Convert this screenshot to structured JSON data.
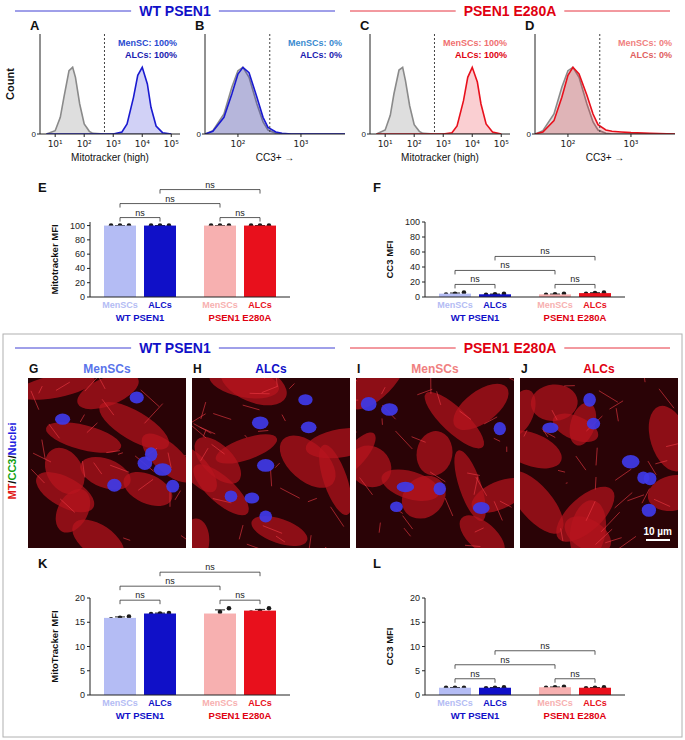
{
  "headers": {
    "top": [
      {
        "text": "WT PSEN1",
        "color": "#1010c8"
      },
      {
        "text": "PSEN1 E280A",
        "color": "#e00010"
      }
    ],
    "bottom": [
      {
        "text": "WT PSEN1",
        "color": "#1010c8"
      },
      {
        "text": "PSEN1 E280A",
        "color": "#e00010"
      }
    ]
  },
  "images": {
    "stain_label": {
      "parts": [
        "MT",
        "/",
        "CC3",
        "/",
        "Nuclei"
      ],
      "colors": [
        "#e01818",
        "#111111",
        "#10a010",
        "#111111",
        "#2020e0"
      ]
    },
    "panels": [
      {
        "panel": "G",
        "title": "MenSCs",
        "color": "#5a74ea"
      },
      {
        "panel": "H",
        "title": "ALCs",
        "color": "#1010c8"
      },
      {
        "panel": "I",
        "title": "MenSCs",
        "color": "#f08080"
      },
      {
        "panel": "J",
        "title": "ALCs",
        "color": "#e00010"
      }
    ],
    "scale_bar": "10 µm"
  },
  "chart_data": [
    {
      "type": "area",
      "panel": "A",
      "log": "x",
      "x": [
        5,
        10,
        15,
        20,
        30,
        40,
        50,
        70,
        100,
        150,
        200,
        500,
        1000,
        2000,
        3000,
        5000,
        7000,
        10000,
        15000,
        20000,
        30000,
        50000,
        100000
      ],
      "series": [
        {
          "color": "#8a8a8a",
          "values": [
            0,
            5,
            25,
            55,
            95,
            100,
            85,
            45,
            15,
            4,
            1,
            0,
            0,
            0,
            0,
            0,
            0,
            0,
            0,
            0,
            0,
            0,
            0
          ]
        },
        {
          "color": "#1a1ad0",
          "values": [
            0,
            0,
            0,
            0,
            0,
            0,
            0,
            0,
            0,
            0,
            0,
            0,
            0,
            3,
            15,
            55,
            88,
            100,
            75,
            40,
            12,
            2,
            0
          ]
        }
      ],
      "xlim": [
        3,
        200000
      ],
      "ylim": [
        0,
        150
      ],
      "xticks": [
        {
          "value": 10,
          "label": "10¹"
        },
        {
          "value": 100,
          "label": "10²"
        },
        {
          "value": 1000,
          "label": "10³"
        },
        {
          "value": 10000,
          "label": "10⁴"
        },
        {
          "value": 100000,
          "label": "10⁵"
        }
      ],
      "yticks": [
        0
      ],
      "x_label": "Mitotracker (high)",
      "y_label": "Count",
      "gate": 500,
      "annotations": [
        {
          "text": "MenSC: 100%",
          "color": "#2a4ad0"
        },
        {
          "text": "ALCs: 100%",
          "color": "#1a1ab0"
        }
      ]
    },
    {
      "type": "area",
      "panel": "B",
      "log": "x",
      "x": [
        30,
        40,
        60,
        80,
        100,
        120,
        150,
        200,
        250,
        300,
        400,
        500,
        700,
        1000,
        2000,
        5000
      ],
      "series": [
        {
          "color": "#8a8a8a",
          "values": [
            0,
            5,
            30,
            70,
            95,
            100,
            85,
            45,
            18,
            6,
            1,
            0,
            0,
            0,
            0,
            0
          ]
        },
        {
          "color": "#1a1ad0",
          "values": [
            0,
            4,
            25,
            60,
            90,
            100,
            92,
            55,
            25,
            10,
            3,
            1,
            0,
            0,
            0,
            0
          ]
        }
      ],
      "xlim": [
        30,
        5000
      ],
      "ylim": [
        0,
        150
      ],
      "xticks": [
        {
          "value": 100,
          "label": "10²"
        },
        {
          "value": 1000,
          "label": "10³"
        }
      ],
      "yticks": [
        0
      ],
      "x_label": "CC3+ →",
      "gate": 320,
      "annotations": [
        {
          "text": "MenSCs: 0%",
          "color": "#3a8ad0"
        },
        {
          "text": "ALCs: 0%",
          "color": "#1a1ab0"
        }
      ]
    },
    {
      "type": "area",
      "panel": "C",
      "log": "x",
      "x": [
        5,
        10,
        15,
        20,
        30,
        40,
        50,
        70,
        100,
        150,
        200,
        500,
        1000,
        2000,
        3000,
        5000,
        7000,
        10000,
        15000,
        20000,
        30000,
        50000,
        100000
      ],
      "series": [
        {
          "color": "#8a8a8a",
          "values": [
            0,
            6,
            28,
            60,
            96,
            100,
            80,
            42,
            14,
            4,
            1,
            0,
            0,
            0,
            0,
            0,
            0,
            0,
            0,
            0,
            0,
            0,
            0
          ]
        },
        {
          "color": "#e8101c",
          "values": [
            0,
            0,
            0,
            0,
            0,
            0,
            0,
            0,
            0,
            0,
            0,
            0,
            0,
            2,
            12,
            50,
            85,
            100,
            78,
            45,
            15,
            3,
            0
          ]
        }
      ],
      "xlim": [
        3,
        200000
      ],
      "ylim": [
        0,
        150
      ],
      "xticks": [
        {
          "value": 10,
          "label": "10¹"
        },
        {
          "value": 100,
          "label": "10²"
        },
        {
          "value": 1000,
          "label": "10³"
        },
        {
          "value": 10000,
          "label": "10⁴"
        },
        {
          "value": 100000,
          "label": "10⁵"
        }
      ],
      "yticks": [
        0
      ],
      "x_label": "Mitotracker (high)",
      "gate": 500,
      "annotations": [
        {
          "text": "MenSCs: 100%",
          "color": "#f07070"
        },
        {
          "text": "ALCs: 100%",
          "color": "#e00010"
        }
      ]
    },
    {
      "type": "area",
      "panel": "D",
      "log": "x",
      "x": [
        30,
        40,
        60,
        80,
        100,
        120,
        150,
        200,
        250,
        300,
        400,
        500,
        700,
        1000,
        2000,
        5000
      ],
      "series": [
        {
          "color": "#8a8a8a",
          "values": [
            0,
            5,
            30,
            70,
            95,
            100,
            85,
            45,
            18,
            6,
            1,
            0,
            0,
            0,
            0,
            0
          ]
        },
        {
          "color": "#e8101c",
          "values": [
            0,
            3,
            20,
            55,
            88,
            100,
            90,
            58,
            30,
            14,
            6,
            4,
            3,
            2,
            1,
            0
          ]
        }
      ],
      "xlim": [
        30,
        5000
      ],
      "ylim": [
        0,
        150
      ],
      "xticks": [
        {
          "value": 100,
          "label": "10²"
        },
        {
          "value": 1000,
          "label": "10³"
        }
      ],
      "yticks": [
        0
      ],
      "x_label": "CC3+ →",
      "gate": 320,
      "annotations": [
        {
          "text": "MenSCs: 0%",
          "color": "#f08080"
        },
        {
          "text": "ALCs: 0%",
          "color": "#e06060"
        }
      ]
    },
    {
      "type": "bar",
      "panel": "E",
      "categories": [
        "MenSCs",
        "ALCs",
        "MenSCs",
        "ALCs"
      ],
      "values": [
        100,
        100,
        100,
        100
      ],
      "errors": [
        0,
        0,
        0,
        0
      ],
      "points": [
        [
          100,
          100,
          100
        ],
        [
          100,
          100,
          100
        ],
        [
          100,
          100,
          100
        ],
        [
          100,
          100,
          100
        ]
      ],
      "colors": [
        "#b4bcf4",
        "#1010c8",
        "#f7b0b0",
        "#e8101c"
      ],
      "groups": [
        {
          "label": "WT PSEN1",
          "members": [
            0,
            1
          ],
          "color": "#1010c8"
        },
        {
          "label": "PSEN1 E280A",
          "members": [
            2,
            3
          ],
          "color": "#e00010"
        }
      ],
      "comparisons": [
        {
          "pair": [
            0,
            1
          ],
          "label": "ns"
        },
        {
          "pair": [
            2,
            3
          ],
          "label": "ns"
        },
        {
          "pair": [
            0,
            2
          ],
          "label": "ns"
        },
        {
          "pair": [
            1,
            3
          ],
          "label": "ns"
        }
      ],
      "ylim": [
        0,
        105
      ],
      "yticks": [
        0,
        20,
        40,
        60,
        80,
        100
      ],
      "y_label": "Mitotracker MFI"
    },
    {
      "type": "bar",
      "panel": "F",
      "categories": [
        "MenSCs",
        "ALCs",
        "MenSCs",
        "ALCs"
      ],
      "values": [
        4.5,
        3.6,
        3.5,
        5.2
      ],
      "errors": [
        0.8,
        0.35,
        0.4,
        0.5
      ],
      "points": [
        [
          3.2,
          4.4,
          5.9
        ],
        [
          3,
          3.6,
          4.2
        ],
        [
          2.8,
          3.5,
          4.2
        ],
        [
          4.3,
          5.2,
          6.1
        ]
      ],
      "colors": [
        "#b4bcf4",
        "#1010c8",
        "#f7b0b0",
        "#e8101c"
      ],
      "groups": [
        {
          "label": "WT PSEN1",
          "members": [
            0,
            1
          ],
          "color": "#1010c8"
        },
        {
          "label": "PSEN1 E280A",
          "members": [
            2,
            3
          ],
          "color": "#e00010"
        }
      ],
      "comparisons": [
        {
          "pair": [
            0,
            1
          ],
          "label": "ns"
        },
        {
          "pair": [
            2,
            3
          ],
          "label": "ns"
        },
        {
          "pair": [
            0,
            2
          ],
          "label": "ns"
        },
        {
          "pair": [
            1,
            3
          ],
          "label": "ns"
        }
      ],
      "ylim": [
        0,
        100
      ],
      "yticks": [
        0,
        20,
        40,
        60,
        80,
        100
      ],
      "y_label": "CC3 MFI"
    },
    {
      "type": "bar",
      "panel": "K",
      "categories": [
        "MenSCs",
        "ALCs",
        "MenSCs",
        "ALCs"
      ],
      "values": [
        15.9,
        16.8,
        16.8,
        17.4
      ],
      "errors": [
        0.2,
        0.1,
        0.75,
        0.25
      ],
      "points": [
        [
          15.6,
          15.9,
          16.2
        ],
        [
          16.7,
          16.8,
          16.9
        ],
        [
          15.4,
          17.1,
          17.9
        ],
        [
          17,
          17.3,
          17.9
        ]
      ],
      "colors": [
        "#b4bcf4",
        "#1010c8",
        "#f7b0b0",
        "#e8101c"
      ],
      "groups": [
        {
          "label": "WT PSEN1",
          "members": [
            0,
            1
          ],
          "color": "#1010c8"
        },
        {
          "label": "PSEN1 E280A",
          "members": [
            2,
            3
          ],
          "color": "#e00010"
        }
      ],
      "comparisons": [
        {
          "pair": [
            0,
            1
          ],
          "label": "ns"
        },
        {
          "pair": [
            2,
            3
          ],
          "label": "ns"
        },
        {
          "pair": [
            0,
            2
          ],
          "label": "ns"
        },
        {
          "pair": [
            1,
            3
          ],
          "label": "ns"
        }
      ],
      "ylim": [
        0,
        20
      ],
      "yticks": [
        0,
        5,
        10,
        15,
        20
      ],
      "y_label": "MitoTracker MFI"
    },
    {
      "type": "bar",
      "panel": "L",
      "categories": [
        "MenSCs",
        "ALCs",
        "MenSCs",
        "ALCs"
      ],
      "values": [
        1.5,
        1.5,
        1.6,
        1.5
      ],
      "errors": [
        0.05,
        0.05,
        0.05,
        0.05
      ],
      "points": [
        [
          1.5,
          1.5,
          1.5
        ],
        [
          1.4,
          1.5,
          1.6
        ],
        [
          1.5,
          1.6,
          1.7
        ],
        [
          1.4,
          1.5,
          1.6
        ]
      ],
      "colors": [
        "#b4bcf4",
        "#1010c8",
        "#f7b0b0",
        "#e8101c"
      ],
      "groups": [
        {
          "label": "WT PSEN1",
          "members": [
            0,
            1
          ],
          "color": "#1010c8"
        },
        {
          "label": "PSEN1 E280A",
          "members": [
            2,
            3
          ],
          "color": "#e00010"
        }
      ],
      "comparisons": [
        {
          "pair": [
            0,
            1
          ],
          "label": "ns"
        },
        {
          "pair": [
            2,
            3
          ],
          "label": "ns"
        },
        {
          "pair": [
            0,
            2
          ],
          "label": "ns"
        },
        {
          "pair": [
            1,
            3
          ],
          "label": "ns"
        }
      ],
      "ylim": [
        0,
        20
      ],
      "yticks": [
        0,
        5,
        10,
        15,
        20
      ],
      "y_label": "CC3 MFI"
    }
  ]
}
